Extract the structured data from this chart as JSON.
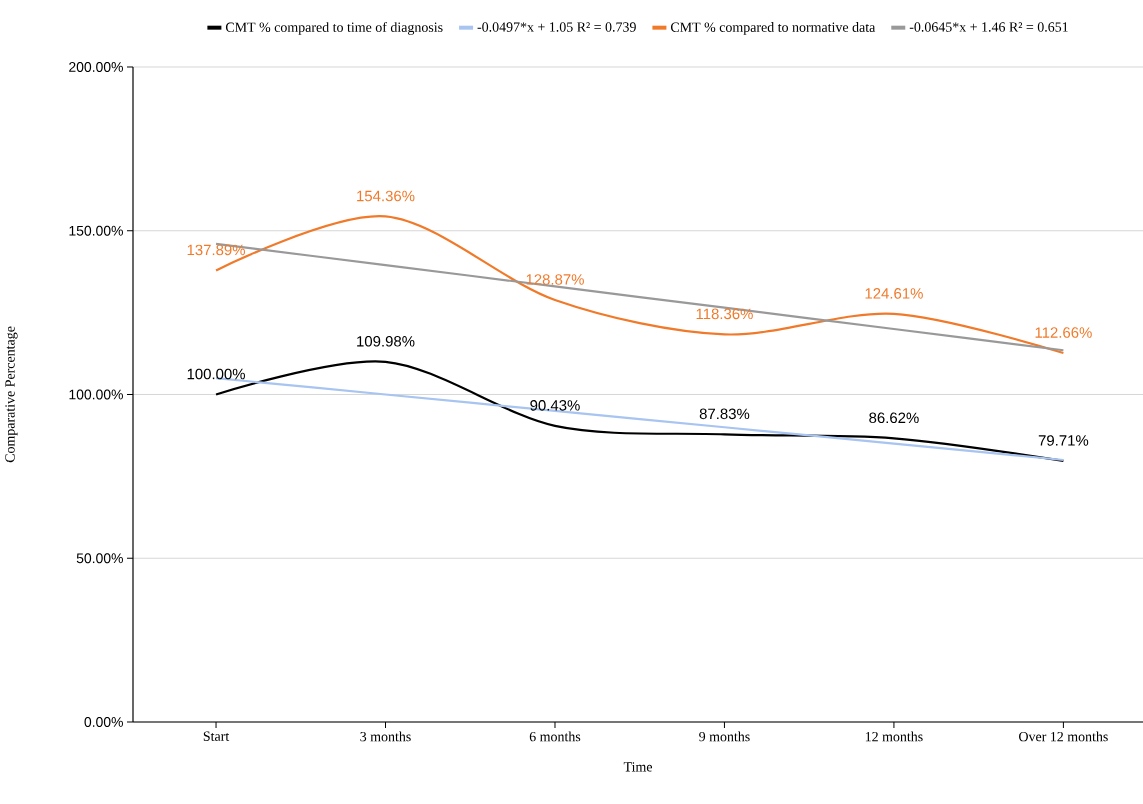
{
  "chart_data": {
    "type": "line",
    "xlabel": "Time",
    "ylabel": "Comparative Percentage",
    "categories": [
      "Start",
      "3 months",
      "6 months",
      "9 months",
      "12 months",
      "Over 12 months"
    ],
    "series": [
      {
        "name": "CMT % compared to time of diagnosis",
        "color": "#000000",
        "values": [
          100.0,
          109.98,
          90.43,
          87.83,
          86.62,
          79.71
        ],
        "value_labels": [
          "100.00%",
          "109.98%",
          "90.43%",
          "87.83%",
          "86.62%",
          "79.71%"
        ]
      },
      {
        "name": "-0.0497*x + 1.05 R² = 0.739",
        "color": "#a8c4f0",
        "values": [
          105,
          100,
          95,
          90,
          85,
          80
        ]
      },
      {
        "name": "CMT % compared to normative data",
        "color": "#f07a2a",
        "values": [
          137.89,
          154.36,
          128.87,
          118.36,
          124.61,
          112.66
        ],
        "value_labels": [
          "137.89%",
          "154.36%",
          "128.87%",
          "118.36%",
          "124.61%",
          "112.66%"
        ]
      },
      {
        "name": "-0.0645*x + 1.46 R² = 0.651",
        "color": "#999999",
        "values": [
          146,
          139.5,
          133,
          126.5,
          120,
          113.5
        ]
      }
    ],
    "ylim": [
      0,
      200
    ],
    "yticks": [
      {
        "value": 0,
        "label": "0.00%"
      },
      {
        "value": 50,
        "label": "50.00%"
      },
      {
        "value": 100,
        "label": "100.00%"
      },
      {
        "value": 150,
        "label": "150.00%"
      },
      {
        "value": 200,
        "label": "200.00%"
      }
    ],
    "grid": "y",
    "legend": "top",
    "marker": "none",
    "line_style": "solid"
  }
}
